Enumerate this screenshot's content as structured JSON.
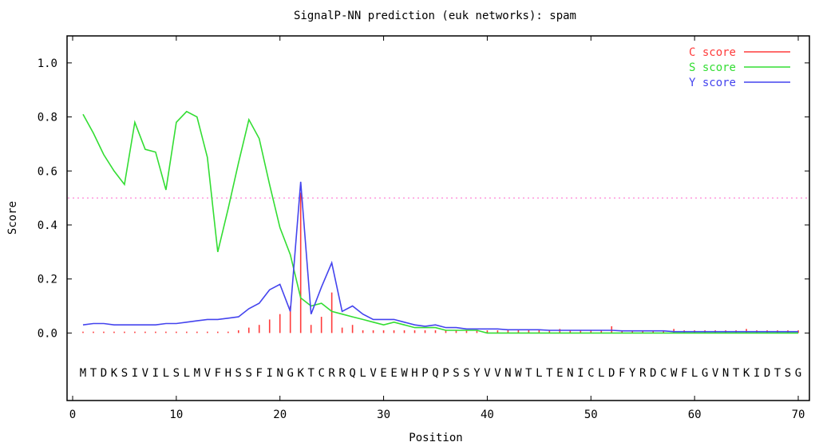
{
  "chart_data": {
    "type": "line",
    "title": "SignalP-NN prediction (euk networks): spam",
    "xlabel": "Position",
    "ylabel": "Score",
    "xlim": [
      0,
      70
    ],
    "ylim": [
      -0.25,
      1.1
    ],
    "x_ticks": [
      0,
      10,
      20,
      30,
      40,
      50,
      60,
      70
    ],
    "y_ticks": [
      0.0,
      0.2,
      0.4,
      0.6,
      0.8,
      1.0
    ],
    "x_tick_labels": [
      "0",
      "10",
      "20",
      "30",
      "40",
      "50",
      "60",
      "70"
    ],
    "y_tick_labels": [
      "0.0",
      "0.2",
      "0.4",
      "0.6",
      "0.8",
      "1.0"
    ],
    "threshold": 0.5,
    "legend_position": "top-right",
    "sequence": "MTDKSIVILSLMVFHSSFINGKTCRRQLVEEWHPQPSSYVVNWTLTENICLDFYRDCWFLGVNTKIDTSG",
    "series": [
      {
        "name": "C score",
        "kind": "bars",
        "color": "#ff3b3b",
        "x": [
          1,
          2,
          3,
          4,
          5,
          6,
          7,
          8,
          9,
          10,
          11,
          12,
          13,
          14,
          15,
          16,
          17,
          18,
          19,
          20,
          21,
          22,
          23,
          24,
          25,
          26,
          27,
          28,
          29,
          30,
          31,
          32,
          33,
          34,
          35,
          36,
          37,
          38,
          39,
          40,
          41,
          42,
          43,
          44,
          45,
          46,
          47,
          48,
          49,
          50,
          51,
          52,
          53,
          54,
          55,
          56,
          57,
          58,
          59,
          60,
          61,
          62,
          63,
          64,
          65,
          66,
          67,
          68,
          69,
          70
        ],
        "values": [
          0.005,
          0.005,
          0.005,
          0.005,
          0.005,
          0.005,
          0.005,
          0.005,
          0.005,
          0.005,
          0.005,
          0.005,
          0.005,
          0.005,
          0.005,
          0.01,
          0.02,
          0.03,
          0.05,
          0.07,
          0.1,
          0.52,
          0.03,
          0.06,
          0.15,
          0.02,
          0.03,
          0.01,
          0.01,
          0.01,
          0.01,
          0.01,
          0.01,
          0.01,
          0.01,
          0.01,
          0.01,
          0.01,
          0.01,
          0.01,
          0.01,
          0.01,
          0.01,
          0.01,
          0.01,
          0.01,
          0.015,
          0.01,
          0.01,
          0.01,
          0.01,
          0.025,
          0.01,
          0.01,
          0.01,
          0.01,
          0.01,
          0.015,
          0.01,
          0.01,
          0.01,
          0.01,
          0.01,
          0.01,
          0.015,
          0.01,
          0.01,
          0.01,
          0.01,
          0.01
        ]
      },
      {
        "name": "S score",
        "kind": "line",
        "color": "#33dd33",
        "x": [
          1,
          2,
          3,
          4,
          5,
          6,
          7,
          8,
          9,
          10,
          11,
          12,
          13,
          14,
          15,
          16,
          17,
          18,
          19,
          20,
          21,
          22,
          23,
          24,
          25,
          26,
          27,
          28,
          29,
          30,
          31,
          32,
          33,
          34,
          35,
          36,
          37,
          38,
          39,
          40,
          41,
          42,
          43,
          44,
          45,
          46,
          47,
          48,
          49,
          50,
          51,
          52,
          53,
          54,
          55,
          56,
          57,
          58,
          59,
          60,
          61,
          62,
          63,
          64,
          65,
          66,
          67,
          68,
          69,
          70
        ],
        "values": [
          0.81,
          0.74,
          0.66,
          0.6,
          0.55,
          0.78,
          0.68,
          0.67,
          0.53,
          0.78,
          0.82,
          0.8,
          0.65,
          0.3,
          0.46,
          0.63,
          0.79,
          0.72,
          0.55,
          0.39,
          0.29,
          0.13,
          0.1,
          0.11,
          0.08,
          0.07,
          0.06,
          0.05,
          0.04,
          0.03,
          0.04,
          0.03,
          0.02,
          0.02,
          0.02,
          0.01,
          0.01,
          0.01,
          0.01,
          0.0,
          0.0,
          0.0,
          0.0,
          0.0,
          0.0,
          0.0,
          0.0,
          0.0,
          0.0,
          0.0,
          0.0,
          0.0,
          0.0,
          0.0,
          0.0,
          0.0,
          0.0,
          0.0,
          0.0,
          0.0,
          0.0,
          0.0,
          0.0,
          0.0,
          0.0,
          0.0,
          0.0,
          0.0,
          0.0,
          0.0
        ]
      },
      {
        "name": "Y score",
        "kind": "line",
        "color": "#4444ee",
        "x": [
          1,
          2,
          3,
          4,
          5,
          6,
          7,
          8,
          9,
          10,
          11,
          12,
          13,
          14,
          15,
          16,
          17,
          18,
          19,
          20,
          21,
          22,
          23,
          24,
          25,
          26,
          27,
          28,
          29,
          30,
          31,
          32,
          33,
          34,
          35,
          36,
          37,
          38,
          39,
          40,
          41,
          42,
          43,
          44,
          45,
          46,
          47,
          48,
          49,
          50,
          51,
          52,
          53,
          54,
          55,
          56,
          57,
          58,
          59,
          60,
          61,
          62,
          63,
          64,
          65,
          66,
          67,
          68,
          69,
          70
        ],
        "values": [
          0.03,
          0.035,
          0.035,
          0.03,
          0.03,
          0.03,
          0.03,
          0.03,
          0.035,
          0.035,
          0.04,
          0.045,
          0.05,
          0.05,
          0.055,
          0.06,
          0.09,
          0.11,
          0.16,
          0.18,
          0.08,
          0.56,
          0.07,
          0.17,
          0.26,
          0.08,
          0.1,
          0.07,
          0.05,
          0.05,
          0.05,
          0.04,
          0.03,
          0.025,
          0.03,
          0.02,
          0.02,
          0.015,
          0.015,
          0.015,
          0.015,
          0.012,
          0.012,
          0.012,
          0.012,
          0.01,
          0.01,
          0.01,
          0.01,
          0.01,
          0.01,
          0.01,
          0.008,
          0.008,
          0.008,
          0.008,
          0.008,
          0.005,
          0.005,
          0.005,
          0.005,
          0.005,
          0.005,
          0.005,
          0.005,
          0.005,
          0.005,
          0.005,
          0.005,
          0.005
        ]
      }
    ]
  }
}
